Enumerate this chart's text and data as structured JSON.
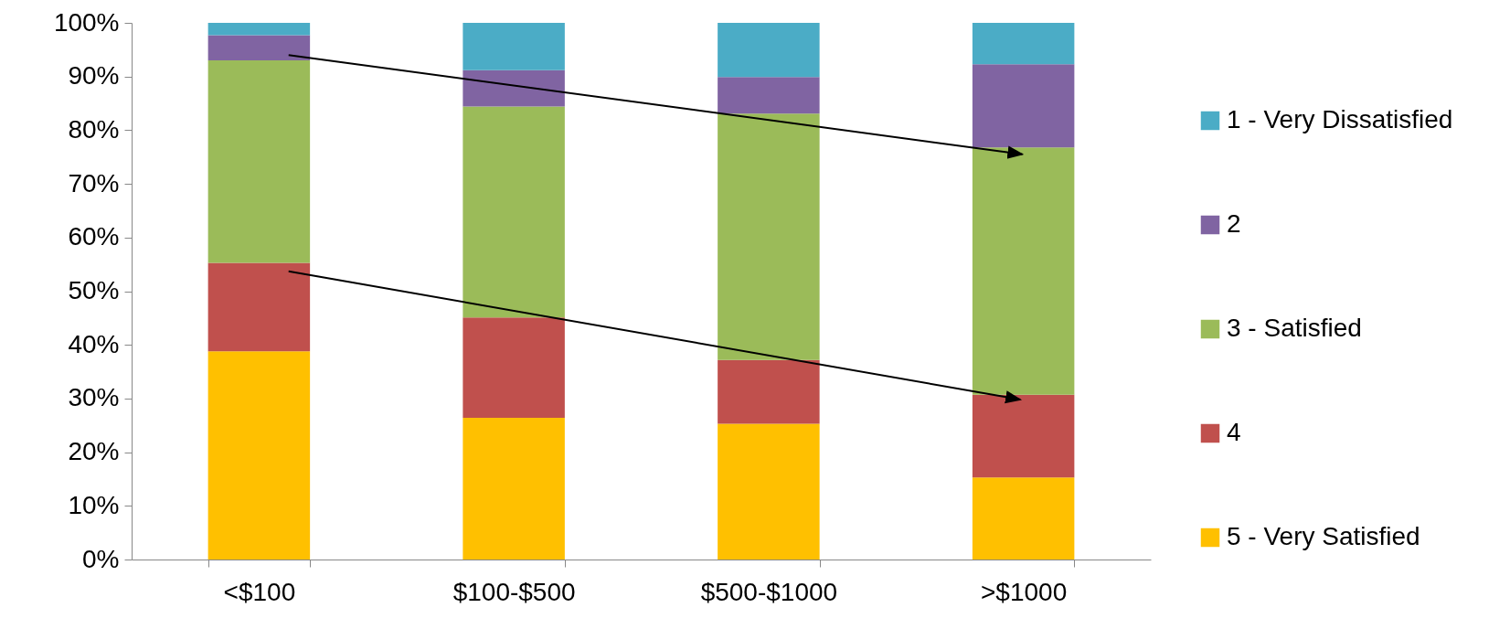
{
  "chart_data": {
    "type": "bar",
    "stacked": true,
    "categories": [
      "<$100",
      "$100-$500",
      "$500-$1000",
      ">$1000"
    ],
    "series": [
      {
        "name": "5 - Very Satisfied",
        "color": "#ffc000",
        "values": [
          38.8,
          26.4,
          25.3,
          15.3
        ]
      },
      {
        "name": "4",
        "color": "#c0504d",
        "values": [
          16.5,
          18.7,
          11.9,
          15.4
        ]
      },
      {
        "name": "3 - Satisfied",
        "color": "#9bbb59",
        "values": [
          37.7,
          39.3,
          45.9,
          46.1
        ]
      },
      {
        "name": "2",
        "color": "#8064a2",
        "values": [
          4.7,
          6.8,
          6.8,
          15.5
        ]
      },
      {
        "name": "1 - Very Dissatisfied",
        "color": "#4bacc6",
        "values": [
          2.3,
          8.8,
          10.1,
          7.7
        ]
      }
    ],
    "ylim": [
      0,
      100
    ],
    "yticks": [
      {
        "value": 0,
        "label": "0%"
      },
      {
        "value": 10,
        "label": "10%"
      },
      {
        "value": 20,
        "label": "20%"
      },
      {
        "value": 30,
        "label": "30%"
      },
      {
        "value": 40,
        "label": "40%"
      },
      {
        "value": 50,
        "label": "50%"
      },
      {
        "value": 60,
        "label": "60%"
      },
      {
        "value": 70,
        "label": "70%"
      },
      {
        "value": 80,
        "label": "80%"
      },
      {
        "value": 90,
        "label": "90%"
      },
      {
        "value": 100,
        "label": "100%"
      }
    ],
    "grid": false,
    "legend": "right"
  }
}
